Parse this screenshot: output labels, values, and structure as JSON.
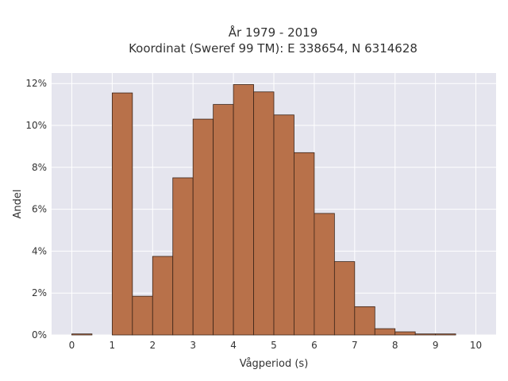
{
  "chart_data": {
    "type": "bar",
    "title_lines": [
      "År 1979 - 2019",
      "Koordinat (Sweref 99 TM): E 338654, N 6314628"
    ],
    "xlabel": "Vågperiod (s)",
    "ylabel": "Andel",
    "xlim": [
      -0.5,
      10.5
    ],
    "ylim": [
      0,
      12.5
    ],
    "x_ticks": [
      0,
      1,
      2,
      3,
      4,
      5,
      6,
      7,
      8,
      9,
      10
    ],
    "x_tick_labels": [
      "0",
      "1",
      "2",
      "3",
      "4",
      "5",
      "6",
      "7",
      "8",
      "9",
      "10"
    ],
    "y_ticks": [
      0,
      2,
      4,
      6,
      8,
      10,
      12
    ],
    "y_tick_labels": [
      "0%",
      "2%",
      "4%",
      "6%",
      "8%",
      "10%",
      "12%"
    ],
    "bin_width": 0.5,
    "bins_start": [
      0,
      0.5,
      1,
      1.5,
      2,
      2.5,
      3,
      3.5,
      4,
      4.5,
      5,
      5.5,
      6,
      6.5,
      7,
      7.5,
      8,
      8.5,
      9,
      9.5
    ],
    "values": [
      0.05,
      0,
      11.55,
      1.85,
      3.75,
      7.5,
      10.3,
      11.0,
      11.95,
      11.6,
      10.5,
      8.7,
      5.8,
      3.5,
      1.35,
      0.3,
      0.15,
      0.05,
      0.05,
      0
    ],
    "grid": true,
    "legend": "none",
    "colors": {
      "bar_fill": "#b8714a",
      "bar_edge": "#3b2418",
      "plot_bg": "#e5e5ee",
      "grid": "#ffffff"
    }
  }
}
